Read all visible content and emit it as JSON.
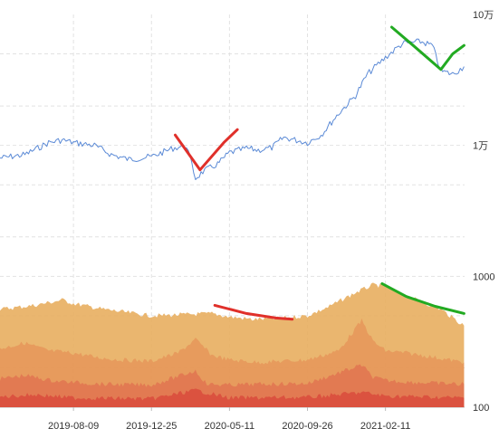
{
  "chart_data": {
    "type": "line",
    "title": "",
    "xlabel": "",
    "ylabel": "",
    "y_scale": "log",
    "ylim": [
      100,
      100000
    ],
    "x_range": [
      "2019-04-01",
      "2021-07-01"
    ],
    "grid": true,
    "legend": "none",
    "x_ticks": [
      {
        "date": "2019-08-09",
        "label": "2019-08-09"
      },
      {
        "date": "2019-12-25",
        "label": "2019-12-25"
      },
      {
        "date": "2020-05-11",
        "label": "2020-05-11"
      },
      {
        "date": "2020-09-26",
        "label": "2020-09-26"
      },
      {
        "date": "2021-02-11",
        "label": "2021-02-11"
      }
    ],
    "y_ticks": [
      {
        "value": 100000,
        "label": "10万"
      },
      {
        "value": 10000,
        "label": "1万"
      },
      {
        "value": 1000,
        "label": "1000"
      },
      {
        "value": 100,
        "label": "100"
      }
    ],
    "series": [
      {
        "kind": "line",
        "color": "#5b8ad6",
        "points": [
          [
            "2019-04-01",
            8000
          ],
          [
            "2019-05-15",
            8500
          ],
          [
            "2019-06-26",
            10500
          ],
          [
            "2019-07-20",
            11000
          ],
          [
            "2019-08-09",
            10500
          ],
          [
            "2019-09-15",
            10000
          ],
          [
            "2019-10-15",
            8500
          ],
          [
            "2019-11-15",
            7800
          ],
          [
            "2019-12-25",
            8200
          ],
          [
            "2020-02-01",
            9500
          ],
          [
            "2020-02-25",
            10000
          ],
          [
            "2020-03-12",
            5600
          ],
          [
            "2020-03-25",
            6300
          ],
          [
            "2020-04-20",
            7200
          ],
          [
            "2020-05-11",
            8800
          ],
          [
            "2020-06-10",
            9500
          ],
          [
            "2020-07-01",
            9200
          ],
          [
            "2020-07-25",
            9600
          ],
          [
            "2020-08-15",
            11500
          ],
          [
            "2020-09-26",
            10500
          ],
          [
            "2020-10-20",
            12000
          ],
          [
            "2020-11-20",
            17500
          ],
          [
            "2020-12-20",
            24000
          ],
          [
            "2021-01-10",
            35000
          ],
          [
            "2021-02-11",
            47000
          ],
          [
            "2021-03-13",
            60000
          ],
          [
            "2021-04-14",
            62000
          ],
          [
            "2021-05-05",
            58000
          ],
          [
            "2021-05-20",
            37000
          ],
          [
            "2021-06-10",
            35000
          ],
          [
            "2021-06-30",
            40000
          ]
        ]
      },
      {
        "kind": "area",
        "color": "#e8ae5f",
        "opacity": 0.9,
        "points": [
          [
            "2019-04-01",
            560
          ],
          [
            "2019-06-01",
            600
          ],
          [
            "2019-07-20",
            660
          ],
          [
            "2019-08-09",
            620
          ],
          [
            "2019-10-01",
            560
          ],
          [
            "2019-12-25",
            500
          ],
          [
            "2020-02-20",
            510
          ],
          [
            "2020-04-10",
            520
          ],
          [
            "2020-05-11",
            490
          ],
          [
            "2020-06-20",
            470
          ],
          [
            "2020-08-01",
            475
          ],
          [
            "2020-09-26",
            500
          ],
          [
            "2020-11-01",
            580
          ],
          [
            "2020-12-20",
            750
          ],
          [
            "2021-01-20",
            860
          ],
          [
            "2021-02-11",
            840
          ],
          [
            "2021-03-10",
            730
          ],
          [
            "2021-04-20",
            630
          ],
          [
            "2021-05-20",
            560
          ],
          [
            "2021-06-30",
            420
          ]
        ]
      },
      {
        "kind": "area",
        "color": "#e59157",
        "opacity": 0.75,
        "points": [
          [
            "2019-04-01",
            280
          ],
          [
            "2019-05-15",
            310
          ],
          [
            "2019-06-26",
            270
          ],
          [
            "2019-08-09",
            260
          ],
          [
            "2019-09-20",
            240
          ],
          [
            "2019-11-01",
            230
          ],
          [
            "2019-12-25",
            225
          ],
          [
            "2020-02-10",
            260
          ],
          [
            "2020-03-12",
            330
          ],
          [
            "2020-04-10",
            250
          ],
          [
            "2020-05-11",
            230
          ],
          [
            "2020-07-01",
            220
          ],
          [
            "2020-09-26",
            230
          ],
          [
            "2020-11-20",
            270
          ],
          [
            "2020-12-31",
            460
          ],
          [
            "2021-01-20",
            320
          ],
          [
            "2021-02-11",
            270
          ],
          [
            "2021-03-20",
            260
          ],
          [
            "2021-05-10",
            240
          ],
          [
            "2021-06-30",
            220
          ]
        ]
      },
      {
        "kind": "area",
        "color": "#e06f4f",
        "opacity": 0.75,
        "points": [
          [
            "2019-04-01",
            165
          ],
          [
            "2019-05-15",
            175
          ],
          [
            "2019-07-01",
            160
          ],
          [
            "2019-08-09",
            155
          ],
          [
            "2019-10-01",
            150
          ],
          [
            "2019-12-25",
            148
          ],
          [
            "2020-03-12",
            190
          ],
          [
            "2020-04-01",
            150
          ],
          [
            "2020-05-11",
            148
          ],
          [
            "2020-07-01",
            150
          ],
          [
            "2020-09-26",
            152
          ],
          [
            "2020-12-31",
            210
          ],
          [
            "2021-01-20",
            170
          ],
          [
            "2021-02-11",
            160
          ],
          [
            "2021-04-01",
            155
          ],
          [
            "2021-06-30",
            150
          ]
        ]
      },
      {
        "kind": "area",
        "color": "#d9483b",
        "opacity": 0.8,
        "points": [
          [
            "2019-04-01",
            120
          ],
          [
            "2019-06-01",
            125
          ],
          [
            "2019-08-09",
            118
          ],
          [
            "2019-12-25",
            116
          ],
          [
            "2020-03-12",
            135
          ],
          [
            "2020-05-11",
            118
          ],
          [
            "2020-09-26",
            119
          ],
          [
            "2020-12-31",
            130
          ],
          [
            "2021-02-11",
            122
          ],
          [
            "2021-06-30",
            118
          ]
        ]
      }
    ],
    "annotations": [
      {
        "color": "#e0302a",
        "points": [
          [
            "2020-02-05",
            12000
          ],
          [
            "2020-03-20",
            6500
          ],
          [
            "2020-05-01",
            10500
          ],
          [
            "2020-05-25",
            13200
          ]
        ]
      },
      {
        "color": "#22aa22",
        "points": [
          [
            "2021-02-22",
            80000
          ],
          [
            "2021-04-01",
            58000
          ],
          [
            "2021-05-20",
            38000
          ],
          [
            "2021-06-10",
            50000
          ],
          [
            "2021-06-30",
            58000
          ]
        ]
      },
      {
        "color": "#e0302a",
        "points": [
          [
            "2020-04-15",
            600
          ],
          [
            "2020-06-10",
            520
          ],
          [
            "2020-08-01",
            480
          ],
          [
            "2020-08-30",
            470
          ]
        ]
      },
      {
        "color": "#22aa22",
        "points": [
          [
            "2021-02-05",
            880
          ],
          [
            "2021-03-20",
            700
          ],
          [
            "2021-05-10",
            590
          ],
          [
            "2021-06-30",
            520
          ]
        ]
      }
    ]
  }
}
